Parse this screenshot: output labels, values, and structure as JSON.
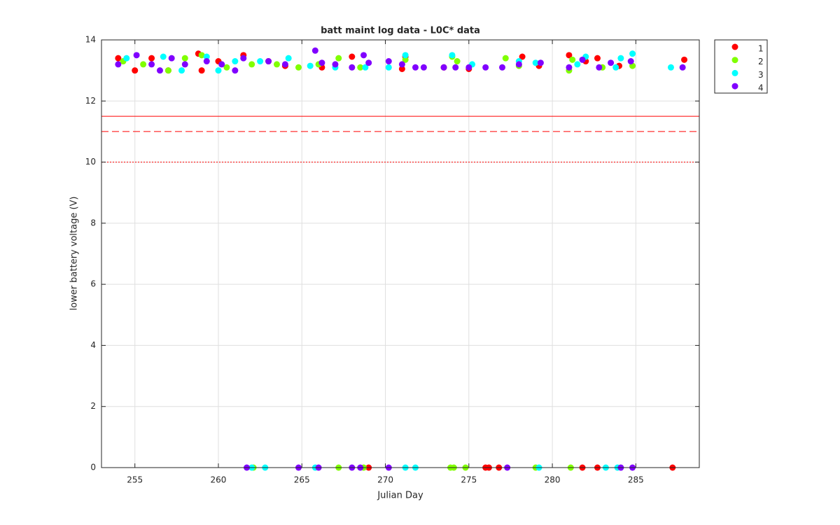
{
  "chart_data": {
    "type": "scatter",
    "title": "batt maint log data - L0C* data",
    "x_label": "Julian Day",
    "y_label": "lower battery voltage (V)",
    "xlim": [
      253,
      288.8
    ],
    "ylim": [
      0,
      14
    ],
    "xticks": [
      255,
      260,
      265,
      270,
      275,
      280,
      285
    ],
    "yticks": [
      0,
      2,
      4,
      6,
      8,
      10,
      12,
      14
    ],
    "grid": true,
    "legend_position": "northeastoutside",
    "reference_lines": [
      {
        "value": 11.5,
        "style": "solid",
        "color": "#ff0000"
      },
      {
        "value": 11,
        "style": "dashed",
        "color": "#ff0000"
      },
      {
        "value": 10,
        "style": "dotted",
        "color": "#ff0000"
      }
    ],
    "series": [
      {
        "name": "1",
        "color": "#ff0000",
        "x": [
          254,
          255,
          256,
          257,
          258.8,
          259,
          260,
          261.5,
          263,
          264,
          266.2,
          268,
          271,
          271.2,
          273.5,
          275,
          278.2,
          279.2,
          281,
          282,
          282.7,
          284,
          287.9,
          269,
          276,
          276.2,
          276.8,
          281.8,
          282.7,
          287.2
        ],
        "y": [
          13.4,
          13.0,
          13.4,
          13.0,
          13.55,
          13.0,
          13.3,
          13.5,
          13.3,
          13.15,
          13.1,
          13.45,
          13.05,
          13.45,
          13.1,
          13.05,
          13.45,
          13.15,
          13.5,
          13.3,
          13.4,
          13.15,
          13.35,
          0,
          0,
          0,
          0,
          0,
          0,
          0
        ]
      },
      {
        "name": "2",
        "color": "#80ff00",
        "x": [
          254.3,
          255.5,
          257,
          258,
          259,
          260.5,
          262,
          263.5,
          264.8,
          266,
          267.2,
          268.5,
          271.2,
          274,
          274.3,
          277.2,
          278,
          281,
          281.2,
          283,
          284.8,
          262.1,
          267.2,
          268.7,
          273.9,
          274.1,
          274.8,
          279,
          281.1
        ],
        "y": [
          13.3,
          13.2,
          13.0,
          13.4,
          13.5,
          13.1,
          13.2,
          13.2,
          13.1,
          13.2,
          13.4,
          13.1,
          13.35,
          13.45,
          13.3,
          13.4,
          13.15,
          13.0,
          13.35,
          13.1,
          13.15,
          0,
          0,
          0,
          0,
          0,
          0,
          0,
          0
        ]
      },
      {
        "name": "3",
        "color": "#00ffff",
        "x": [
          254.5,
          256.7,
          257.8,
          259.3,
          260,
          261,
          262.5,
          264.2,
          265.5,
          267,
          268.8,
          270.2,
          271.2,
          274,
          275.2,
          278,
          279,
          281.5,
          282,
          283.8,
          284.1,
          284.8,
          287.1,
          262,
          262.8,
          265.8,
          271.2,
          271.8,
          279.2,
          283.2,
          283.9
        ],
        "y": [
          13.4,
          13.45,
          13.0,
          13.45,
          13.0,
          13.3,
          13.3,
          13.4,
          13.15,
          13.1,
          13.1,
          13.1,
          13.5,
          13.5,
          13.2,
          13.3,
          13.25,
          13.2,
          13.45,
          13.1,
          13.4,
          13.55,
          13.1,
          0,
          0,
          0,
          0,
          0,
          0,
          0,
          0
        ]
      },
      {
        "name": "4",
        "color": "#8000ff",
        "x": [
          254,
          255.1,
          256,
          256.5,
          257.2,
          258,
          259.3,
          260.2,
          261,
          261.5,
          263,
          264,
          265.8,
          266.2,
          267,
          268,
          268.7,
          269,
          270.2,
          271,
          271.8,
          272.3,
          273.5,
          274.2,
          275,
          276,
          277,
          278,
          279.3,
          281,
          281.8,
          282.8,
          283.5,
          284.7,
          287.8,
          261.7,
          264.8,
          266,
          268,
          268.5,
          270.2,
          277.3,
          284.1,
          284.8
        ],
        "y": [
          13.2,
          13.5,
          13.2,
          13.0,
          13.4,
          13.2,
          13.3,
          13.2,
          13.0,
          13.4,
          13.3,
          13.2,
          13.65,
          13.25,
          13.2,
          13.1,
          13.5,
          13.25,
          13.3,
          13.2,
          13.1,
          13.1,
          13.1,
          13.1,
          13.1,
          13.1,
          13.1,
          13.2,
          13.25,
          13.1,
          13.35,
          13.1,
          13.25,
          13.3,
          13.1,
          0,
          0,
          0,
          0,
          0,
          0,
          0,
          0,
          0
        ]
      }
    ]
  }
}
